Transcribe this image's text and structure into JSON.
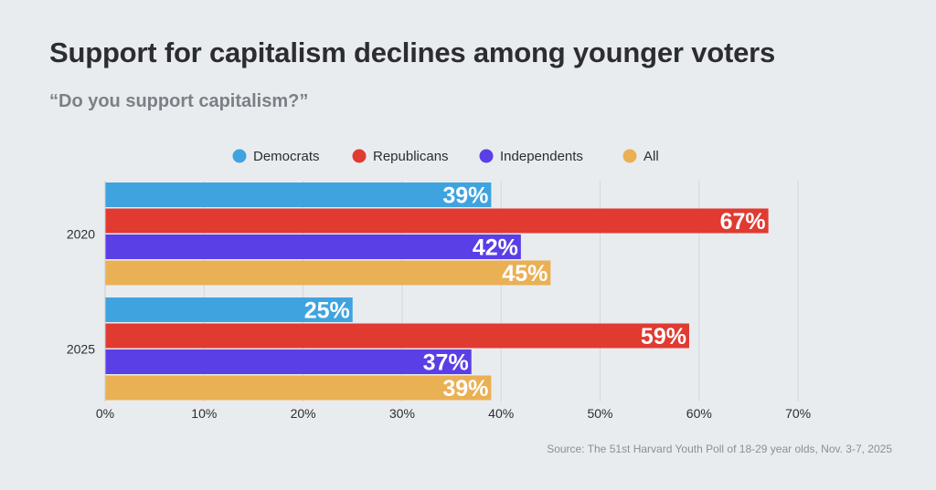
{
  "title": "Support for capitalism declines among younger voters",
  "subtitle": "“Do you support capitalism?”",
  "source": "Source: The 51st Harvard Youth Poll of 18-29 year olds, Nov. 3-7, 2025",
  "chart_data": {
    "type": "bar",
    "orientation": "horizontal",
    "categories": [
      "2020",
      "2025"
    ],
    "series": [
      {
        "name": "Democrats",
        "color": "#3fa3e0",
        "values": [
          39,
          25
        ]
      },
      {
        "name": "Republicans",
        "color": "#e03a31",
        "values": [
          67,
          59
        ]
      },
      {
        "name": "Independents",
        "color": "#5a3fe6",
        "values": [
          42,
          37
        ]
      },
      {
        "name": "All",
        "color": "#eab054",
        "values": [
          45,
          39
        ]
      }
    ],
    "xlim": [
      0,
      70
    ],
    "xticks": [
      "0%",
      "10%",
      "20%",
      "30%",
      "40%",
      "50%",
      "60%",
      "70%"
    ],
    "value_suffix": "%",
    "grid": true,
    "legend_position": "top"
  }
}
